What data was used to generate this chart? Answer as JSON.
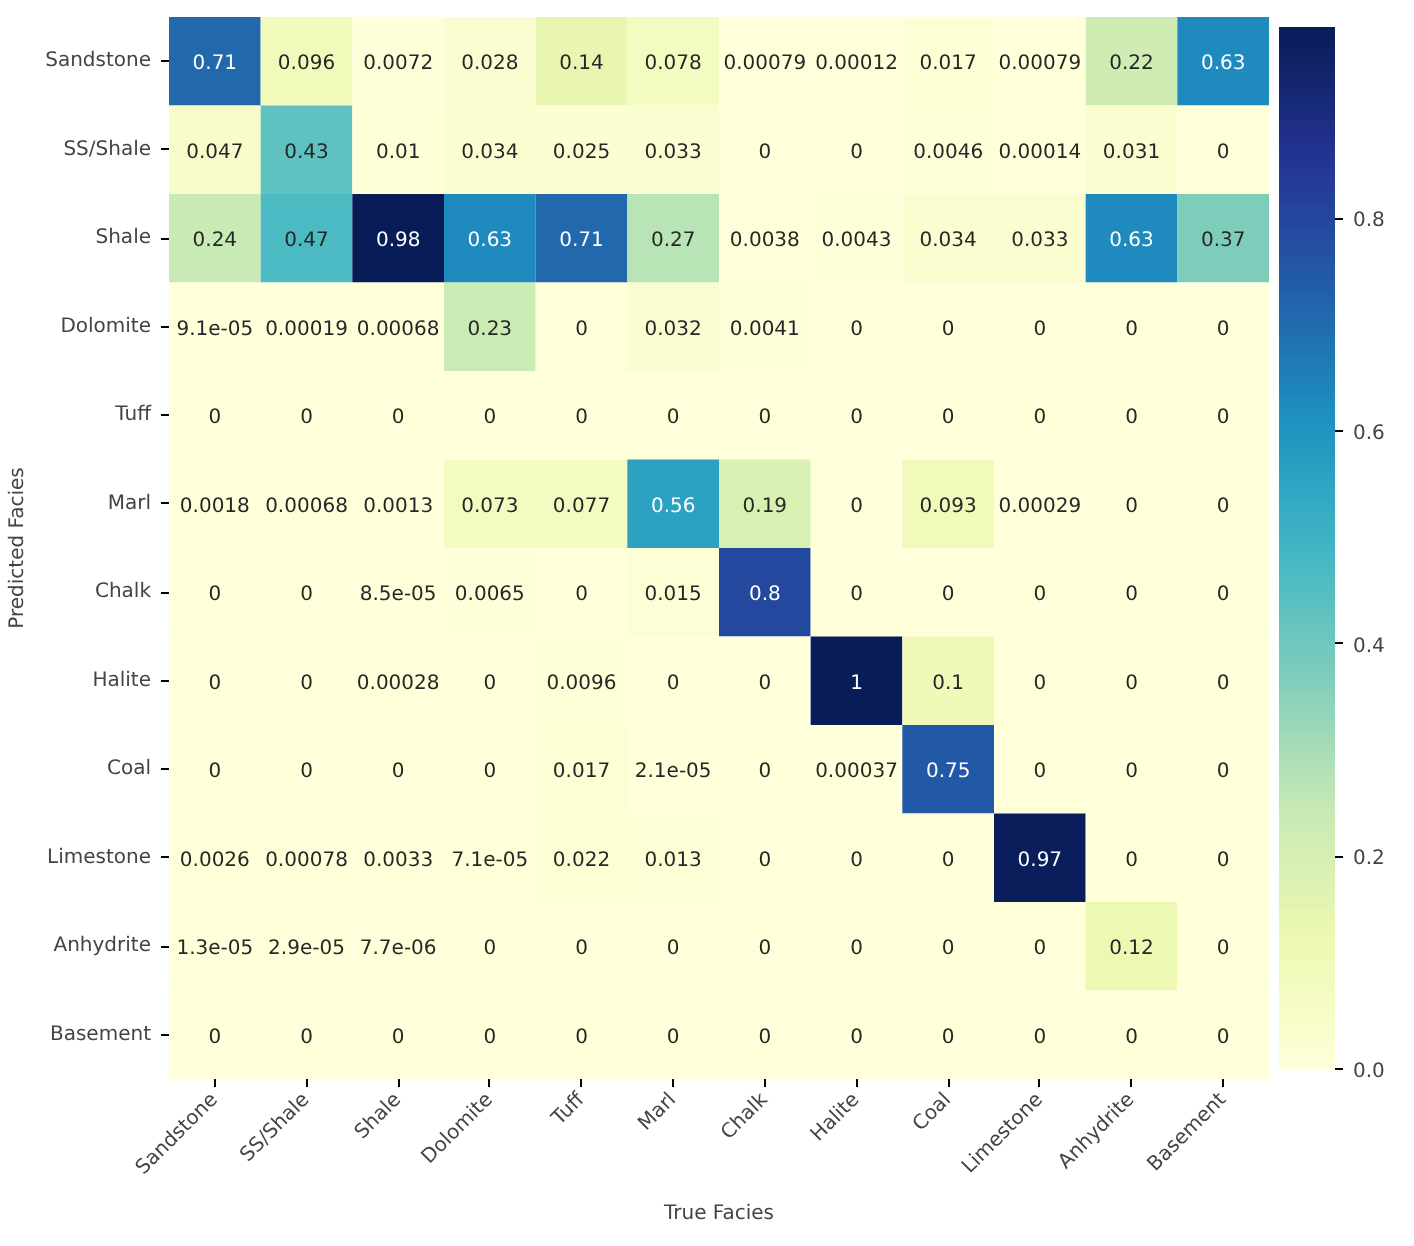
{
  "chart_data": {
    "type": "heatmap",
    "xlabel": "True Facies",
    "ylabel": "Predicted Facies",
    "categories": [
      "Sandstone",
      "SS/Shale",
      "Shale",
      "Dolomite",
      "Tuff",
      "Marl",
      "Chalk",
      "Halite",
      "Coal",
      "Limestone",
      "Anhydrite",
      "Basement"
    ],
    "y_categories": [
      "Sandstone",
      "SS/Shale",
      "Shale",
      "Dolomite",
      "Tuff",
      "Marl",
      "Chalk",
      "Halite",
      "Coal",
      "Limestone",
      "Anhydrite",
      "Basement"
    ],
    "cells": [
      [
        0.71,
        0.096,
        0.0072,
        0.028,
        0.14,
        0.078,
        0.00079,
        0.00012,
        0.017,
        0.00079,
        0.22,
        0.63
      ],
      [
        0.047,
        0.43,
        0.01,
        0.034,
        0.025,
        0.033,
        0,
        0,
        0.0046,
        0.00014,
        0.031,
        0
      ],
      [
        0.24,
        0.47,
        0.98,
        0.63,
        0.71,
        0.27,
        0.0038,
        0.0043,
        0.034,
        0.033,
        0.63,
        0.37
      ],
      [
        9.1e-05,
        0.00019,
        0.00068,
        0.23,
        0,
        0.032,
        0.0041,
        0,
        0,
        0,
        0,
        0
      ],
      [
        0,
        0,
        0,
        0,
        0,
        0,
        0,
        0,
        0,
        0,
        0,
        0
      ],
      [
        0.0018,
        0.00068,
        0.0013,
        0.073,
        0.077,
        0.56,
        0.19,
        0,
        0.093,
        0.00029,
        0,
        0
      ],
      [
        0,
        0,
        8.5e-05,
        0.0065,
        0,
        0.015,
        0.8,
        0,
        0,
        0,
        0,
        0
      ],
      [
        0,
        0,
        0.00028,
        0,
        0.0096,
        0,
        0,
        1,
        0.1,
        0,
        0,
        0
      ],
      [
        0,
        0,
        0,
        0,
        0.017,
        2.1e-05,
        0,
        0.00037,
        0.75,
        0,
        0,
        0
      ],
      [
        0.0026,
        0.00078,
        0.0033,
        7.1e-05,
        0.022,
        0.013,
        0,
        0,
        0,
        0.97,
        0,
        0
      ],
      [
        1.3e-05,
        2.9e-05,
        7.7e-06,
        0,
        0,
        0,
        0,
        0,
        0,
        0,
        0.12,
        0
      ],
      [
        0,
        0,
        0,
        0,
        0,
        0,
        0,
        0,
        0,
        0,
        0,
        0
      ]
    ],
    "data_labels": true,
    "clim": [
      0,
      0.98
    ],
    "cticks": [
      {
        "value": 0,
        "label": "0.0"
      },
      {
        "value": 0.2,
        "label": "0.2"
      },
      {
        "value": 0.4,
        "label": "0.4"
      },
      {
        "value": 0.6,
        "label": "0.6"
      },
      {
        "value": 0.8,
        "label": "0.8"
      }
    ]
  }
}
